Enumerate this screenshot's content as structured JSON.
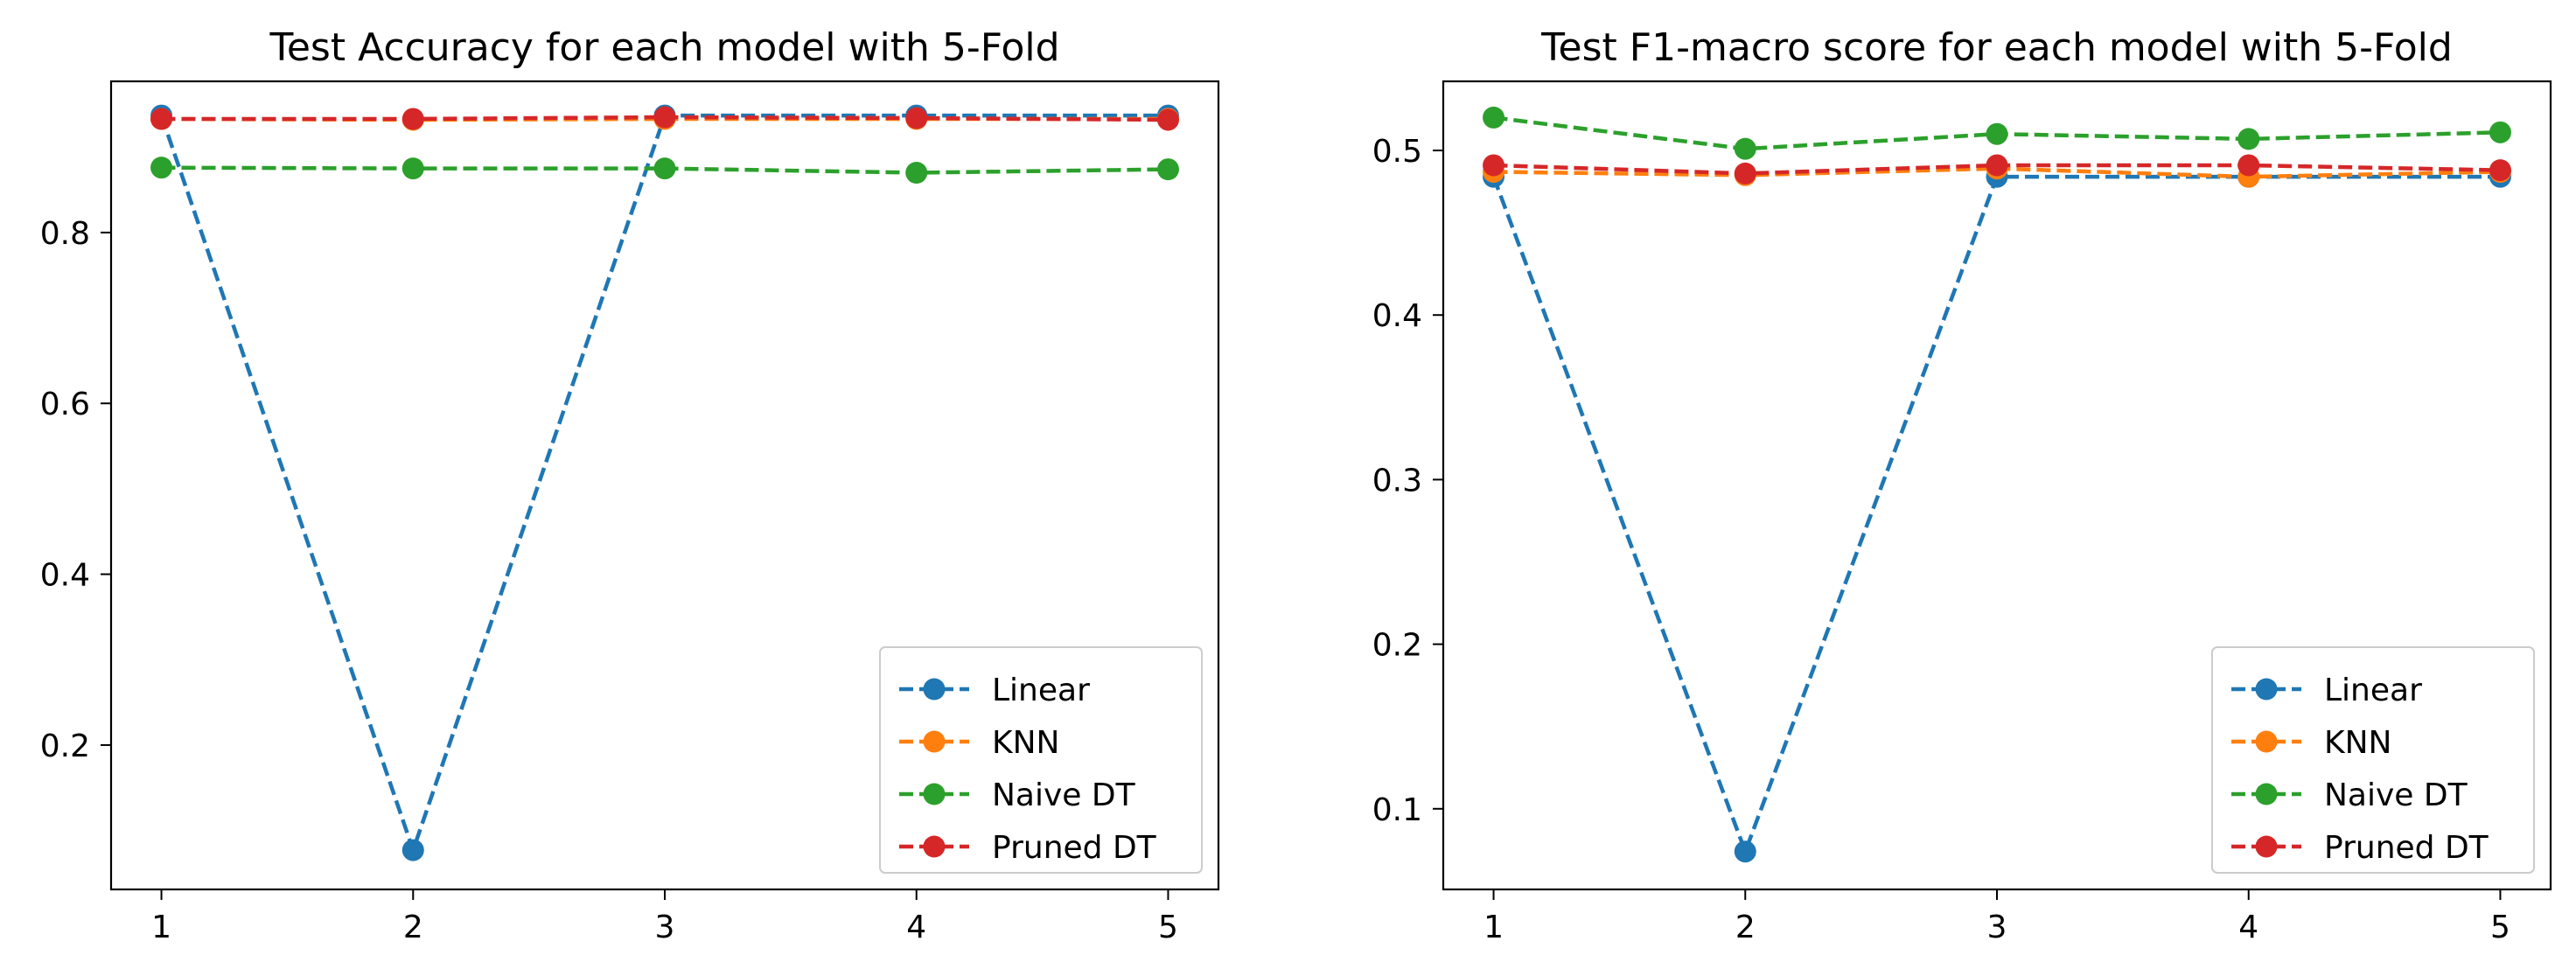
{
  "colors": {
    "Linear": "#1f77b4",
    "KNN": "#ff7f0e",
    "Naive DT": "#2ca02c",
    "Pruned DT": "#d62728"
  },
  "chart_data": [
    {
      "type": "line",
      "title": "Test Accuracy for each model with 5-Fold",
      "xlabel": "",
      "ylabel": "",
      "x": [
        1,
        2,
        3,
        4,
        5
      ],
      "xticks": [
        "1",
        "2",
        "3",
        "4",
        "5"
      ],
      "xlim": [
        0.8,
        5.2
      ],
      "yticks": [
        0.2,
        0.4,
        0.6,
        0.8
      ],
      "ytick_labels": [
        "0.2",
        "0.4",
        "0.6",
        "0.8"
      ],
      "ylim": [
        0.031,
        0.977
      ],
      "grid": false,
      "line_style": "dashed",
      "marker": "circle",
      "legend_position": "lower right",
      "series": [
        {
          "name": "Linear",
          "values": [
            0.937,
            0.077,
            0.937,
            0.937,
            0.937
          ]
        },
        {
          "name": "KNN",
          "values": [
            0.933,
            0.932,
            0.933,
            0.933,
            0.933
          ]
        },
        {
          "name": "Naive DT",
          "values": [
            0.876,
            0.875,
            0.875,
            0.87,
            0.874
          ]
        },
        {
          "name": "Pruned DT",
          "values": [
            0.933,
            0.933,
            0.935,
            0.934,
            0.932
          ]
        }
      ]
    },
    {
      "type": "line",
      "title": "Test F1-macro score for each model with 5-Fold",
      "xlabel": "",
      "ylabel": "",
      "x": [
        1,
        2,
        3,
        4,
        5
      ],
      "xticks": [
        "1",
        "2",
        "3",
        "4",
        "5"
      ],
      "xlim": [
        0.8,
        5.2
      ],
      "yticks": [
        0.1,
        0.2,
        0.3,
        0.4,
        0.5
      ],
      "ytick_labels": [
        "0.1",
        "0.2",
        "0.3",
        "0.4",
        "0.5"
      ],
      "ylim": [
        0.051,
        0.542
      ],
      "grid": false,
      "line_style": "dashed",
      "marker": "circle",
      "legend_position": "lower right",
      "series": [
        {
          "name": "Linear",
          "values": [
            0.484,
            0.074,
            0.484,
            0.484,
            0.484
          ]
        },
        {
          "name": "KNN",
          "values": [
            0.487,
            0.485,
            0.489,
            0.484,
            0.487
          ]
        },
        {
          "name": "Naive DT",
          "values": [
            0.52,
            0.501,
            0.51,
            0.507,
            0.511
          ]
        },
        {
          "name": "Pruned DT",
          "values": [
            0.491,
            0.486,
            0.491,
            0.491,
            0.488
          ]
        }
      ]
    }
  ]
}
